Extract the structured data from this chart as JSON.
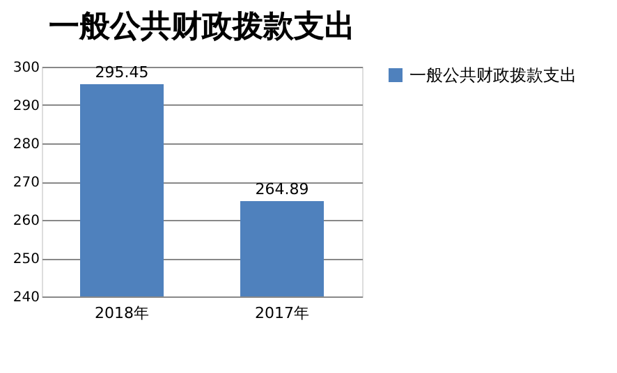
{
  "chart_data": {
    "type": "bar",
    "title": "一般公共财政拨款支出",
    "categories": [
      "2018年",
      "2017年"
    ],
    "series": [
      {
        "name": "一般公共财政拨款支出",
        "color": "#4f81bd",
        "values": [
          295.45,
          264.89
        ]
      }
    ],
    "ylim": [
      240,
      300
    ],
    "yticks": [
      240,
      250,
      260,
      270,
      280,
      290,
      300
    ],
    "grid": "y",
    "legend": "right",
    "data_labels": true
  }
}
